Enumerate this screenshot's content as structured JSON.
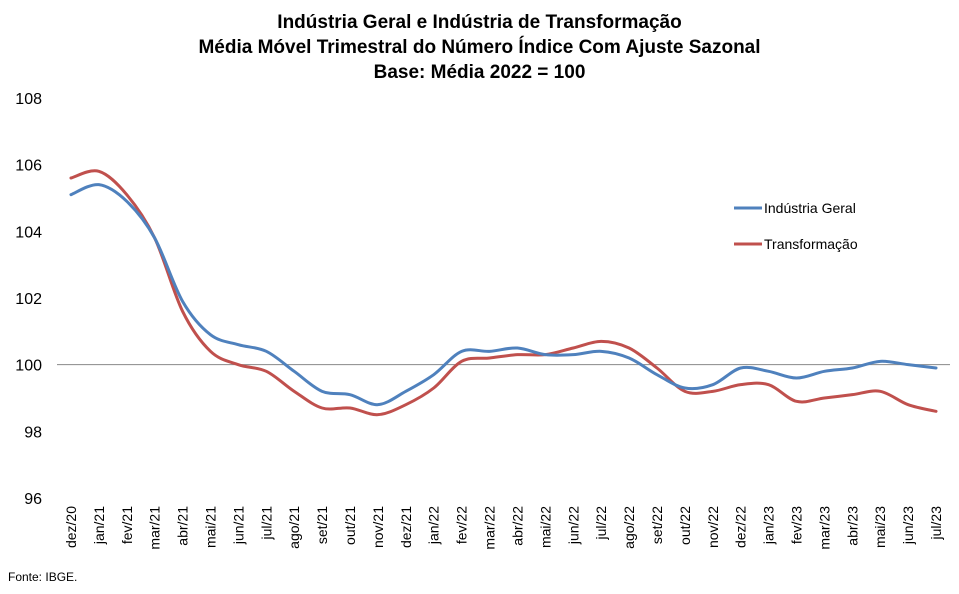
{
  "chart_data": {
    "type": "line",
    "title": [
      "Indústria Geral e Indústria de Transformação",
      "Média Móvel Trimestral do Número Índice Com Ajuste Sazonal",
      "Base: Média 2022 = 100"
    ],
    "xlabel": "",
    "ylabel": "",
    "ylim": [
      96,
      108
    ],
    "yticks": [
      96,
      98,
      100,
      102,
      104,
      106,
      108
    ],
    "reference_line": 100,
    "grid": false,
    "legend_position": "right",
    "categories": [
      "dez/20",
      "jan/21",
      "fev/21",
      "mar/21",
      "abr/21",
      "mai/21",
      "jun/21",
      "jul/21",
      "ago/21",
      "set/21",
      "out/21",
      "nov/21",
      "dez/21",
      "jan/22",
      "fev/22",
      "mar/22",
      "abr/22",
      "mai/22",
      "jun/22",
      "jul/22",
      "ago/22",
      "set/22",
      "out/22",
      "nov/22",
      "dez/22",
      "jan/23",
      "fev/23",
      "mar/23",
      "abr/23",
      "mai/23",
      "jun/23",
      "jul/23"
    ],
    "series": [
      {
        "name": "Indústria Geral",
        "color": "#4F81BD",
        "values": [
          105.1,
          105.4,
          104.9,
          103.8,
          101.9,
          100.9,
          100.6,
          100.4,
          99.8,
          99.2,
          99.1,
          98.8,
          99.2,
          99.7,
          100.4,
          100.4,
          100.5,
          100.3,
          100.3,
          100.4,
          100.2,
          99.7,
          99.3,
          99.4,
          99.9,
          99.8,
          99.6,
          99.8,
          99.9,
          100.1,
          100.0,
          99.9
        ]
      },
      {
        "name": "Transformação",
        "color": "#C0504D",
        "values": [
          105.6,
          105.8,
          105.1,
          103.8,
          101.6,
          100.4,
          100.0,
          99.8,
          99.2,
          98.7,
          98.7,
          98.5,
          98.8,
          99.3,
          100.1,
          100.2,
          100.3,
          100.3,
          100.5,
          100.7,
          100.5,
          99.9,
          99.2,
          99.2,
          99.4,
          99.4,
          98.9,
          99.0,
          99.1,
          99.2,
          98.8,
          98.6
        ]
      }
    ]
  },
  "source": "Fonte: IBGE."
}
